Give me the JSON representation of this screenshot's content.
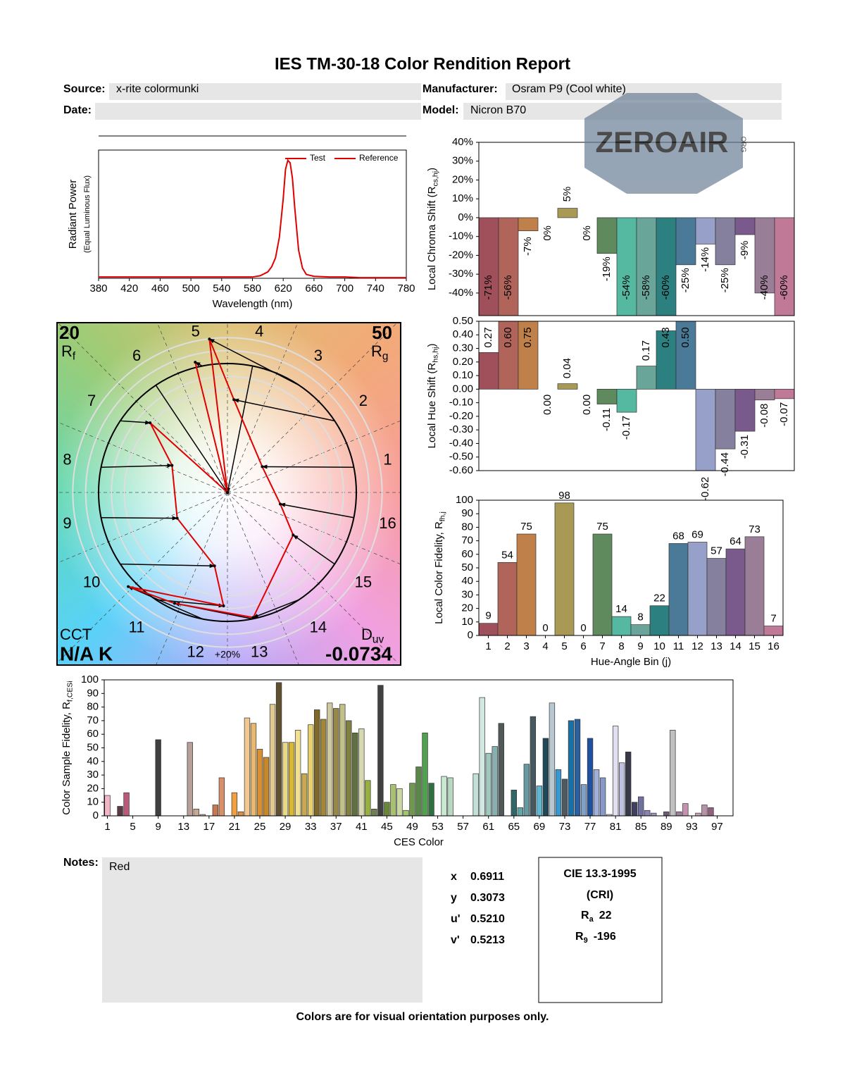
{
  "header": {
    "title": "IES TM-30-18 Color Rendition Report",
    "source_label": "Source:",
    "source": "x-rite colormunki",
    "manufacturer_label": "Manufacturer:",
    "manufacturer": "Osram P9 (Cool white)",
    "date_label": "Date:",
    "model_label": "Model:",
    "model": "Nicron B70"
  },
  "watermark": {
    "text": "ZEROAIR",
    "suffix": "ORG"
  },
  "chart_data": [
    {
      "type": "line",
      "xlabel": "Wavelength (nm)",
      "ylabel": "Radiant Power",
      "ylabel_note": "(Equal Luminous Flux)",
      "x": [
        380,
        400,
        420,
        440,
        460,
        480,
        500,
        520,
        540,
        560,
        580,
        590,
        600,
        605,
        610,
        615,
        620,
        623,
        626,
        629,
        632,
        635,
        640,
        645,
        650,
        660,
        680,
        700,
        720,
        740,
        760,
        780
      ],
      "series": [
        {
          "name": "Test",
          "color": "#e00000",
          "values": [
            0.01,
            0.01,
            0.01,
            0.01,
            0.01,
            0.01,
            0.01,
            0.01,
            0.01,
            0.01,
            0.01,
            0.02,
            0.05,
            0.09,
            0.16,
            0.32,
            0.62,
            0.85,
            0.92,
            0.9,
            0.78,
            0.55,
            0.22,
            0.08,
            0.03,
            0.015,
            0.01,
            0.01,
            0.005,
            0.005,
            0.005,
            0.005
          ]
        },
        {
          "name": "Reference",
          "color": "#e00000",
          "values": [
            null,
            null,
            null,
            null,
            null,
            null,
            null,
            null,
            null,
            null,
            null,
            null,
            null,
            null,
            null,
            null,
            null,
            null,
            null,
            null,
            null,
            null,
            null,
            null,
            null,
            null,
            null,
            null,
            null,
            null,
            null,
            null
          ]
        }
      ],
      "xlim": [
        380,
        780
      ],
      "xticks": [
        380,
        420,
        460,
        500,
        540,
        580,
        620,
        660,
        700,
        740,
        780
      ],
      "ylim": [
        0,
        1
      ],
      "legend": "upper right"
    },
    {
      "type": "bar",
      "ylabel": "Local Chroma Shift (R",
      "ylabel_sub": "cs,hj",
      "ylabel_end": ")",
      "values": [
        -71,
        -56,
        -7,
        0,
        5,
        0,
        -19,
        -54,
        -58,
        -60,
        -25,
        -14,
        -25,
        -9,
        -40,
        -60
      ],
      "value_labels": [
        "-71%",
        "-56%",
        "-7%",
        "0%",
        "5%",
        "0%",
        "-19%",
        "-54%",
        "-58%",
        "-60%",
        "-25%",
        "-14%",
        "-25%",
        "-9%",
        "-40%",
        "-60%"
      ],
      "colors": [
        "#a0505a",
        "#b0645a",
        "#c0804a",
        "#a89c50",
        "#a89a55",
        "#8a9a50",
        "#5e8a5e",
        "#55b8a0",
        "#6aa59a",
        "#2d8080",
        "#4a7a98",
        "#96a0c8",
        "#85809e",
        "#7a5a8c",
        "#9a7e98",
        "#c07a98"
      ],
      "ylim": [
        -52,
        40
      ],
      "yticks": [
        {
          "value": 40,
          "label": "40%"
        },
        {
          "value": 30,
          "label": "30%"
        },
        {
          "value": 20,
          "label": "20%"
        },
        {
          "value": 10,
          "label": "10%"
        },
        {
          "value": 0,
          "label": "0%"
        },
        {
          "value": -10,
          "label": "-10%"
        },
        {
          "value": -20,
          "label": "-20%"
        },
        {
          "value": -30,
          "label": "-30%"
        },
        {
          "value": -40,
          "label": "-40%"
        }
      ]
    },
    {
      "type": "bar",
      "ylabel": "Local Hue Shift (R",
      "ylabel_sub": "hs,hj",
      "ylabel_end": ")",
      "values": [
        0.27,
        0.6,
        0.75,
        0,
        0.04,
        0,
        -0.11,
        -0.17,
        0.17,
        0.43,
        0.5,
        -0.62,
        -0.44,
        -0.31,
        -0.08,
        -0.07
      ],
      "value_labels": [
        "0.27",
        "0.60",
        "0.75",
        "0.00",
        "0.04",
        "0.00",
        "-0.11",
        "-0.17",
        "0.17",
        "0.43",
        "0.50",
        "-0.62",
        "-0.44",
        "-0.31",
        "-0.08",
        "-0.07"
      ],
      "colors": [
        "#a0505a",
        "#b0645a",
        "#c0804a",
        "#a89c50",
        "#a89a55",
        "#8a9a50",
        "#5e8a5e",
        "#55b8a0",
        "#6aa59a",
        "#2d8080",
        "#4a7a98",
        "#96a0c8",
        "#85809e",
        "#7a5a8c",
        "#9a7e98",
        "#c07a98"
      ],
      "ylim": [
        -0.6,
        0.5
      ],
      "yticks": [
        {
          "value": 0.5,
          "label": "0.50"
        },
        {
          "value": 0.4,
          "label": "0.40"
        },
        {
          "value": 0.3,
          "label": "0.30"
        },
        {
          "value": 0.2,
          "label": "0.20"
        },
        {
          "value": 0.1,
          "label": "0.10"
        },
        {
          "value": 0,
          "label": "0.00"
        },
        {
          "value": -0.1,
          "label": "-0.10"
        },
        {
          "value": -0.2,
          "label": "-0.20"
        },
        {
          "value": -0.3,
          "label": "-0.30"
        },
        {
          "value": -0.4,
          "label": "-0.40"
        },
        {
          "value": -0.5,
          "label": "-0.50"
        },
        {
          "value": -0.6,
          "label": "-0.60"
        }
      ]
    },
    {
      "type": "bar",
      "xlabel": "Hue-Angle Bin (j)",
      "ylabel": "Local Color Fidelity, R",
      "ylabel_sub": "fh,j",
      "categories": [
        "1",
        "2",
        "3",
        "4",
        "5",
        "6",
        "7",
        "8",
        "9",
        "10",
        "11",
        "12",
        "13",
        "14",
        "15",
        "16"
      ],
      "values": [
        9,
        54,
        75,
        0,
        98,
        0,
        75,
        14,
        8,
        22,
        68,
        69,
        57,
        64,
        73,
        7
      ],
      "colors": [
        "#a0505a",
        "#b0645a",
        "#c0804a",
        "#a89c50",
        "#a89a55",
        "#8a9a50",
        "#5e8a5e",
        "#55b8a0",
        "#6aa59a",
        "#2d8080",
        "#4a7a98",
        "#96a0c8",
        "#85809e",
        "#7a5a8c",
        "#9a7e98",
        "#c07a98"
      ],
      "ylim": [
        0,
        100
      ],
      "yticks": [
        0,
        10,
        20,
        30,
        40,
        50,
        60,
        70,
        80,
        90,
        100
      ],
      "show_value_labels": true
    },
    {
      "type": "bar",
      "xlabel": "CES Color",
      "ylabel": "Color Sample Fidelity, R",
      "ylabel_sub": "f,CESi",
      "categories": [
        "1",
        null,
        null,
        null,
        "5",
        null,
        null,
        null,
        "9",
        null,
        null,
        null,
        "13",
        null,
        null,
        null,
        "17",
        null,
        null,
        null,
        "21",
        null,
        null,
        null,
        "25",
        null,
        null,
        null,
        "29",
        null,
        null,
        null,
        "33",
        null,
        null,
        null,
        "37",
        null,
        null,
        null,
        "41",
        null,
        null,
        null,
        "45",
        null,
        null,
        null,
        "49",
        null,
        null,
        null,
        "53",
        null,
        null,
        null,
        "57",
        null,
        null,
        null,
        "61",
        null,
        null,
        null,
        "65",
        null,
        null,
        null,
        "69",
        null,
        null,
        null,
        "73",
        null,
        null,
        null,
        "77",
        null,
        null,
        null,
        "81",
        null,
        null,
        null,
        "85",
        null,
        null,
        null,
        "89",
        null,
        null,
        null,
        "93",
        null,
        null,
        null,
        "97",
        null,
        null
      ],
      "values": [
        15,
        0,
        7,
        17,
        0,
        0,
        0,
        0,
        56,
        0,
        0,
        0,
        0,
        54,
        5,
        1,
        0,
        8,
        28,
        0,
        17,
        3,
        72,
        68,
        49,
        43,
        82,
        98,
        54,
        54,
        63,
        31,
        67,
        78,
        71,
        83,
        79,
        82,
        70,
        61,
        64,
        26,
        5,
        96,
        10,
        23,
        20,
        4,
        24,
        36,
        61,
        24,
        0,
        29,
        28,
        0,
        0,
        0,
        31,
        87,
        46,
        51,
        68,
        0,
        19,
        6,
        38,
        73,
        22,
        57,
        83,
        34,
        27,
        70,
        71,
        23,
        57,
        34,
        28,
        1,
        66,
        39,
        47,
        10,
        14,
        4,
        2,
        0,
        3,
        63,
        3,
        9,
        0,
        2,
        8,
        6,
        0,
        0,
        0
      ],
      "colors": [
        "#f2b6c6",
        "#e8a0a8",
        "#5a3a48",
        "#b85a78",
        "#d88090",
        "#c06070",
        "#a04858",
        "#803848",
        "#404040",
        "#606060",
        "#888080",
        "#a09088",
        "#b8a098",
        "#b8a098",
        "#c8a890",
        "#d0b0a0",
        "#b07058",
        "#c87850",
        "#d89068",
        "#e8a060",
        "#f0a040",
        "#d89048",
        "#f0c890",
        "#e8b870",
        "#d89030",
        "#c88828",
        "#e0c890",
        "#605030",
        "#e8d888",
        "#d8b830",
        "#f0e090",
        "#c8a850",
        "#e8d070",
        "#806828",
        "#a08838",
        "#d0c8a0",
        "#988848",
        "#c0c088",
        "#808040",
        "#607040",
        "#d8d8b0",
        "#98b040",
        "#708050",
        "#404040",
        "#688838",
        "#a8c070",
        "#c8d8a0",
        "#a0c868",
        "#709850",
        "#588848",
        "#50a050",
        "#307040",
        "#a0c8a0",
        "#c8e8d0",
        "#b8d8c0",
        "#90c0a0",
        "#60a080",
        "#408868",
        "#c0e0d8",
        "#d0e8e0",
        "#a0c8c0",
        "#88b0b0",
        "#505858",
        "#407878",
        "#306868",
        "#60a8a8",
        "#6898a0",
        "#485860",
        "#60b8d0",
        "#204858",
        "#b8c8d0",
        "#3898d0",
        "#505860",
        "#1870a8",
        "#2860a0",
        "#80a0c8",
        "#2050a0",
        "#a0b0d8",
        "#8898c8",
        "#d0d8e8",
        "#e0e0f0",
        "#c0c0e0",
        "#383848",
        "#404060",
        "#7070a0",
        "#9080b8",
        "#a090c8",
        "#c0b0d8",
        "#705878",
        "#c0c0c0",
        "#a08098",
        "#c890b0",
        "#e0c0d0",
        "#d0a0b8",
        "#b890a8",
        "#906080",
        "#e0a8c0",
        "#c88098",
        "#a06078"
      ],
      "ylim": [
        0,
        100
      ],
      "yticks": [
        0,
        10,
        20,
        30,
        40,
        50,
        60,
        70,
        80,
        90,
        100
      ]
    },
    {
      "type": "vector",
      "categories": [
        "1",
        "2",
        "3",
        "4",
        "5",
        "6",
        "7",
        "8",
        "9",
        "10",
        "11",
        "12",
        "13",
        "14",
        "15",
        "16"
      ],
      "test_x": [
        0.27,
        0.05,
        -0.14,
        0,
        -0.25,
        0,
        -0.6,
        -0.43,
        -0.39,
        -0.1,
        -0.03,
        -0.77,
        -0.41,
        0.2,
        0.51,
        0.41
      ],
      "test_y": [
        0.2,
        0.72,
        1.19,
        0,
        1.01,
        0,
        0.54,
        0.21,
        -0.2,
        -0.57,
        -0.88,
        -0.73,
        -0.86,
        -0.97,
        -0.33,
        -0.09
      ],
      "test_color": "#e00000",
      "reference_color": "#000000",
      "rf": 20,
      "rf_label": "R",
      "rf_sub": "f",
      "rg": 50,
      "rg_label": "R",
      "rg_sub": "g",
      "cct_label": "CCT",
      "cct": "N/A K",
      "duv_label": "D",
      "duv_sub": "uv",
      "duv": -0.0734,
      "ring_label": "+20%"
    }
  ],
  "notes": {
    "label": "Notes:",
    "text": "Red"
  },
  "colorimetry": [
    {
      "label": "x",
      "value": "0.6911"
    },
    {
      "label": "y",
      "value": "0.3073"
    },
    {
      "label": "u'",
      "value": "0.5210"
    },
    {
      "label": "v'",
      "value": "0.5213"
    }
  ],
  "cri": {
    "title": "CIE 13.3-1995",
    "subtitle": "(CRI)",
    "ra_label": "R",
    "ra_sub": "a",
    "ra": 22,
    "r9_label": "R",
    "r9_sub": "9",
    "r9": -196
  },
  "footer": "Colors are for visual orientation purposes only."
}
